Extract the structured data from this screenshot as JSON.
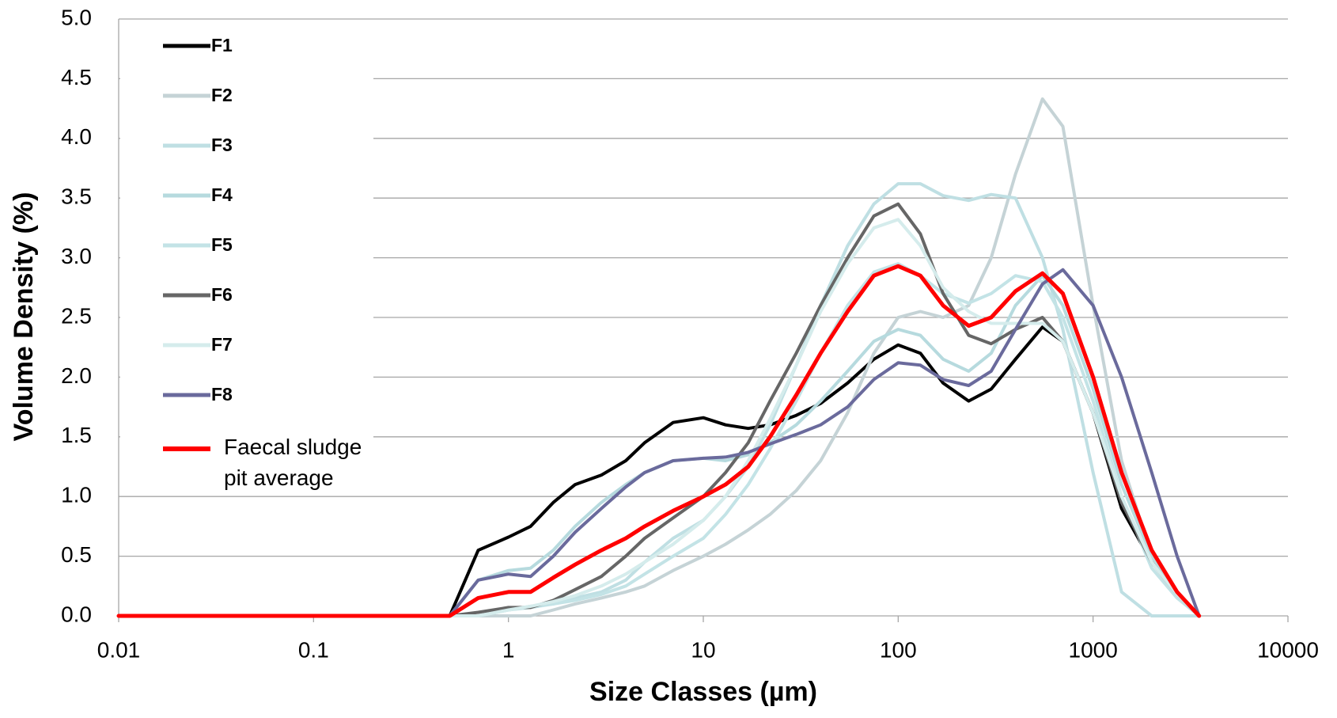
{
  "chart_data": {
    "type": "line",
    "x_label": "Size Classes (µm)",
    "y_label": "Volume Density (%)",
    "log_x": true,
    "grid": true,
    "legend_position": "upper-left",
    "xlim": [
      0.01,
      10000
    ],
    "xticks": [
      0.01,
      0.1,
      1,
      10,
      100,
      1000,
      10000
    ],
    "ylim": [
      0,
      5
    ],
    "yticks": [
      {
        "value": 0,
        "label": "0.0"
      },
      0.5,
      {
        "value": 1,
        "label": "1.0"
      },
      1.5,
      {
        "value": 2,
        "label": "2.0"
      },
      2.5,
      {
        "value": 3,
        "label": "3.0"
      },
      3.5,
      {
        "value": 4,
        "label": "4.0"
      },
      4.5,
      {
        "value": 5,
        "label": "5.0"
      }
    ],
    "x": [
      0.01,
      0.5,
      0.7,
      1,
      1.3,
      1.7,
      2.2,
      3,
      4,
      5,
      7,
      10,
      13,
      17,
      22,
      30,
      40,
      55,
      75,
      100,
      130,
      170,
      230,
      300,
      400,
      550,
      700,
      1000,
      1400,
      2000,
      2700,
      3500
    ],
    "series": [
      {
        "name": "F1",
        "color": "#000000",
        "values": [
          0,
          0,
          0.55,
          0.66,
          0.75,
          0.95,
          1.1,
          1.18,
          1.3,
          1.45,
          1.62,
          1.66,
          1.6,
          1.57,
          1.6,
          1.68,
          1.78,
          1.95,
          2.15,
          2.27,
          2.2,
          1.95,
          1.8,
          1.9,
          2.15,
          2.42,
          2.3,
          1.7,
          0.9,
          0.45,
          0.2,
          0
        ]
      },
      {
        "name": "F2",
        "color": "#c5d3d6",
        "values": [
          0,
          0,
          0,
          0,
          0,
          0.05,
          0.1,
          0.15,
          0.2,
          0.25,
          0.38,
          0.5,
          0.6,
          0.72,
          0.85,
          1.05,
          1.3,
          1.7,
          2.2,
          2.5,
          2.55,
          2.5,
          2.6,
          3.0,
          3.7,
          4.33,
          4.1,
          2.6,
          1.3,
          0.5,
          0.2,
          0
        ]
      },
      {
        "name": "F3",
        "color": "#bfdfe3",
        "values": [
          0,
          0,
          0,
          0.05,
          0.08,
          0.1,
          0.15,
          0.2,
          0.3,
          0.45,
          0.65,
          0.8,
          1.0,
          1.25,
          1.6,
          2.1,
          2.6,
          3.1,
          3.45,
          3.62,
          3.62,
          3.52,
          3.48,
          3.53,
          3.5,
          3.0,
          2.4,
          1.2,
          0.2,
          0,
          0,
          0
        ]
      },
      {
        "name": "F4",
        "color": "#b6dade",
        "values": [
          0,
          0,
          0.3,
          0.38,
          0.4,
          0.55,
          0.75,
          0.95,
          1.1,
          1.2,
          1.3,
          1.32,
          1.3,
          1.35,
          1.45,
          1.6,
          1.8,
          2.05,
          2.3,
          2.4,
          2.35,
          2.15,
          2.05,
          2.2,
          2.6,
          2.85,
          2.6,
          1.9,
          1.1,
          0.5,
          0.2,
          0
        ]
      },
      {
        "name": "F5",
        "color": "#c3e3e6",
        "values": [
          0,
          0,
          0,
          0.05,
          0.07,
          0.1,
          0.13,
          0.18,
          0.25,
          0.35,
          0.5,
          0.65,
          0.85,
          1.1,
          1.4,
          1.8,
          2.2,
          2.6,
          2.88,
          2.95,
          2.85,
          2.7,
          2.62,
          2.7,
          2.85,
          2.8,
          2.5,
          1.8,
          1.0,
          0.4,
          0.15,
          0
        ]
      },
      {
        "name": "F6",
        "color": "#666666",
        "values": [
          0,
          0,
          0.03,
          0.07,
          0.07,
          0.13,
          0.22,
          0.33,
          0.5,
          0.65,
          0.82,
          1.0,
          1.2,
          1.45,
          1.8,
          2.2,
          2.6,
          3.0,
          3.35,
          3.45,
          3.2,
          2.7,
          2.35,
          2.28,
          2.4,
          2.5,
          2.3,
          1.7,
          0.95,
          0.45,
          0.18,
          0
        ]
      },
      {
        "name": "F7",
        "color": "#d5ecec",
        "values": [
          0,
          0,
          0,
          0.05,
          0.08,
          0.12,
          0.17,
          0.25,
          0.35,
          0.45,
          0.6,
          0.8,
          1.0,
          1.3,
          1.65,
          2.1,
          2.55,
          2.95,
          3.25,
          3.32,
          3.1,
          2.75,
          2.55,
          2.45,
          2.45,
          2.45,
          2.3,
          1.7,
          1.0,
          0.45,
          0.18,
          0
        ]
      },
      {
        "name": "F8",
        "color": "#6a6a9c",
        "values": [
          0,
          0,
          0.3,
          0.35,
          0.33,
          0.5,
          0.7,
          0.9,
          1.08,
          1.2,
          1.3,
          1.32,
          1.33,
          1.37,
          1.44,
          1.52,
          1.6,
          1.75,
          1.98,
          2.12,
          2.1,
          1.98,
          1.93,
          2.05,
          2.4,
          2.78,
          2.9,
          2.6,
          2.0,
          1.2,
          0.5,
          0
        ]
      },
      {
        "name": "Faecal sludge pit average",
        "color": "#ff0000",
        "values": [
          0,
          0,
          0.15,
          0.2,
          0.2,
          0.32,
          0.43,
          0.55,
          0.65,
          0.75,
          0.88,
          1.0,
          1.1,
          1.25,
          1.5,
          1.85,
          2.2,
          2.55,
          2.85,
          2.93,
          2.85,
          2.6,
          2.43,
          2.5,
          2.72,
          2.87,
          2.7,
          2.0,
          1.2,
          0.55,
          0.2,
          0
        ]
      }
    ]
  }
}
